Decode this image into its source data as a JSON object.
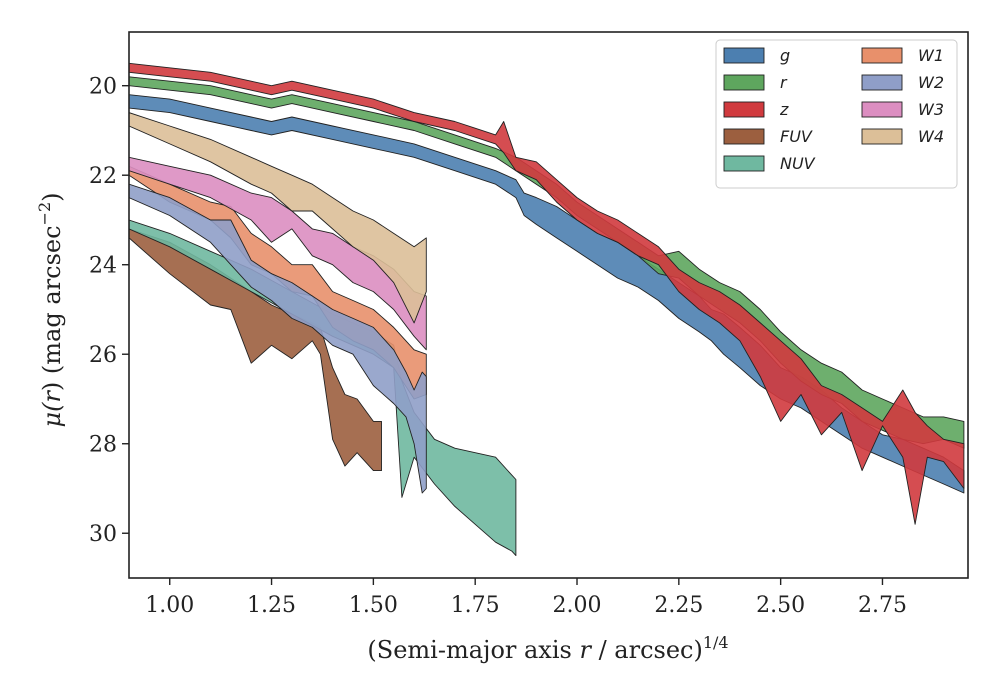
{
  "chart_data": {
    "type": "area",
    "xlabel_main": "(Semi-major axis ",
    "xlabel_var": "r",
    "xlabel_rest": " / arcsec)",
    "xlabel_sup": "1/4",
    "ylabel_main": "μ(",
    "ylabel_var": "r",
    "ylabel_rest": ") (mag arcsec",
    "ylabel_sup": "−2",
    "ylabel_close": ")",
    "xlim": [
      0.9,
      2.96
    ],
    "ylim": [
      31.0,
      18.8
    ],
    "y_inverted": true,
    "x_ticks": [
      1.0,
      1.25,
      1.5,
      1.75,
      2.0,
      2.25,
      2.5,
      2.75
    ],
    "x_tick_labels": [
      "1.00",
      "1.25",
      "1.50",
      "1.75",
      "2.00",
      "2.25",
      "2.50",
      "2.75"
    ],
    "y_ticks": [
      20,
      22,
      24,
      26,
      28,
      30
    ],
    "y_tick_labels": [
      "20",
      "22",
      "24",
      "26",
      "28",
      "30"
    ],
    "grid": false,
    "legend_position": "top-right",
    "legend_columns": 2,
    "series": [
      {
        "name": "g",
        "color": "#4c7fb0",
        "x": [
          0.9,
          1.0,
          1.1,
          1.2,
          1.25,
          1.3,
          1.4,
          1.5,
          1.6,
          1.7,
          1.8,
          1.85,
          1.87,
          1.9,
          1.95,
          2.0,
          2.05,
          2.1,
          2.15,
          2.2,
          2.25,
          2.3,
          2.33,
          2.36,
          2.4,
          2.45,
          2.5,
          2.55,
          2.6,
          2.65,
          2.7,
          2.75,
          2.8,
          2.85,
          2.9,
          2.95
        ],
        "y_lower": [
          20.2,
          20.3,
          20.5,
          20.7,
          20.8,
          20.7,
          20.9,
          21.1,
          21.3,
          21.6,
          21.9,
          22.1,
          22.4,
          22.5,
          22.7,
          23.0,
          23.3,
          23.5,
          23.8,
          24.1,
          24.4,
          24.7,
          25.0,
          25.1,
          25.4,
          25.8,
          26.3,
          26.5,
          26.8,
          27.2,
          27.5,
          27.8,
          27.9,
          28.1,
          28.3,
          28.6
        ],
        "y_upper": [
          20.5,
          20.6,
          20.8,
          21.0,
          21.1,
          21.0,
          21.2,
          21.4,
          21.6,
          21.9,
          22.2,
          22.5,
          22.9,
          23.1,
          23.4,
          23.7,
          24.0,
          24.3,
          24.5,
          24.8,
          25.2,
          25.5,
          25.7,
          26.0,
          26.3,
          26.7,
          27.0,
          27.2,
          27.5,
          27.8,
          28.1,
          28.3,
          28.5,
          28.7,
          28.9,
          29.1
        ]
      },
      {
        "name": "r",
        "color": "#5ea65e",
        "x": [
          0.9,
          1.0,
          1.1,
          1.2,
          1.25,
          1.3,
          1.4,
          1.5,
          1.6,
          1.7,
          1.8,
          1.85,
          1.9,
          1.95,
          2.0,
          2.05,
          2.1,
          2.15,
          2.2,
          2.25,
          2.3,
          2.35,
          2.4,
          2.45,
          2.5,
          2.55,
          2.6,
          2.65,
          2.7,
          2.75,
          2.8,
          2.85,
          2.9,
          2.95
        ],
        "y_lower": [
          19.8,
          19.9,
          20.0,
          20.2,
          20.3,
          20.2,
          20.4,
          20.6,
          20.8,
          21.1,
          21.4,
          21.6,
          21.9,
          22.2,
          22.6,
          22.9,
          23.2,
          23.5,
          23.8,
          23.7,
          24.1,
          24.4,
          24.6,
          25.0,
          25.5,
          25.9,
          26.2,
          26.4,
          26.8,
          27.0,
          27.2,
          27.4,
          27.4,
          27.5
        ],
        "y_upper": [
          20.0,
          20.1,
          20.2,
          20.4,
          20.5,
          20.4,
          20.6,
          20.8,
          21.0,
          21.3,
          21.6,
          21.9,
          22.2,
          22.5,
          22.9,
          23.2,
          23.5,
          23.8,
          24.2,
          24.3,
          24.7,
          25.0,
          25.3,
          25.7,
          26.2,
          26.6,
          26.9,
          27.1,
          27.5,
          27.7,
          27.9,
          28.0,
          27.9,
          28.1
        ]
      },
      {
        "name": "z",
        "color": "#d03a3e",
        "x": [
          0.9,
          1.0,
          1.1,
          1.2,
          1.25,
          1.3,
          1.4,
          1.5,
          1.6,
          1.7,
          1.8,
          1.82,
          1.85,
          1.9,
          1.95,
          2.0,
          2.05,
          2.1,
          2.15,
          2.2,
          2.25,
          2.3,
          2.35,
          2.4,
          2.45,
          2.5,
          2.55,
          2.6,
          2.65,
          2.7,
          2.75,
          2.8,
          2.83,
          2.86,
          2.9,
          2.95
        ],
        "y_lower": [
          19.5,
          19.6,
          19.7,
          19.9,
          20.0,
          19.9,
          20.1,
          20.3,
          20.6,
          20.8,
          21.1,
          20.8,
          21.6,
          21.7,
          22.1,
          22.5,
          22.8,
          23.0,
          23.3,
          23.6,
          24.1,
          24.4,
          24.6,
          24.9,
          25.3,
          25.7,
          26.1,
          26.7,
          26.9,
          27.2,
          27.5,
          26.8,
          27.3,
          27.6,
          27.9,
          28.0
        ],
        "y_upper": [
          19.7,
          19.8,
          19.9,
          20.1,
          20.2,
          20.1,
          20.3,
          20.5,
          20.8,
          21.0,
          21.3,
          21.5,
          21.9,
          22.1,
          22.6,
          23.0,
          23.3,
          23.5,
          23.8,
          24.0,
          24.6,
          25.0,
          25.3,
          25.7,
          26.5,
          27.5,
          26.9,
          27.8,
          27.3,
          28.6,
          27.6,
          28.3,
          29.8,
          28.3,
          28.4,
          29.0
        ]
      },
      {
        "name": "FUV",
        "color": "#9c5f3f",
        "x": [
          0.9,
          1.0,
          1.1,
          1.15,
          1.2,
          1.25,
          1.3,
          1.35,
          1.37,
          1.4,
          1.43,
          1.46,
          1.5,
          1.52
        ],
        "y_lower": [
          23.2,
          23.5,
          24.0,
          24.3,
          24.6,
          24.9,
          25.1,
          25.3,
          25.4,
          26.3,
          26.9,
          27.0,
          27.5,
          27.5
        ],
        "y_upper": [
          23.4,
          24.2,
          24.9,
          25.0,
          26.2,
          25.8,
          26.1,
          25.7,
          26.0,
          27.9,
          28.5,
          28.2,
          28.6,
          28.6
        ]
      },
      {
        "name": "NUV",
        "color": "#6fb8a0",
        "x": [
          0.9,
          1.0,
          1.1,
          1.2,
          1.3,
          1.4,
          1.5,
          1.55,
          1.57,
          1.6,
          1.65,
          1.7,
          1.75,
          1.8,
          1.84,
          1.85
        ],
        "y_lower": [
          23.0,
          23.3,
          23.7,
          24.1,
          24.6,
          25.1,
          25.5,
          25.8,
          26.6,
          27.3,
          27.9,
          28.1,
          28.2,
          28.3,
          28.7,
          28.8
        ],
        "y_upper": [
          23.2,
          23.6,
          24.1,
          24.6,
          25.1,
          25.6,
          26.0,
          26.3,
          29.2,
          28.3,
          28.9,
          29.4,
          29.8,
          30.2,
          30.4,
          30.5
        ]
      },
      {
        "name": "W1",
        "color": "#e8906b",
        "x": [
          0.9,
          1.0,
          1.1,
          1.15,
          1.2,
          1.25,
          1.3,
          1.35,
          1.4,
          1.45,
          1.5,
          1.55,
          1.6,
          1.63
        ],
        "y_lower": [
          21.8,
          22.2,
          22.6,
          22.7,
          23.3,
          23.6,
          24.0,
          24.0,
          24.6,
          24.8,
          25.0,
          25.4,
          25.9,
          26.0
        ],
        "y_upper": [
          22.0,
          22.6,
          23.0,
          23.4,
          24.0,
          24.2,
          24.6,
          24.7,
          25.4,
          25.7,
          25.9,
          26.3,
          27.0,
          26.9
        ]
      },
      {
        "name": "W2",
        "color": "#8f9ec8",
        "x": [
          0.9,
          1.0,
          1.1,
          1.15,
          1.2,
          1.25,
          1.3,
          1.35,
          1.4,
          1.45,
          1.5,
          1.55,
          1.58,
          1.6,
          1.62,
          1.63
        ],
        "y_lower": [
          22.2,
          22.5,
          23.0,
          23.0,
          23.9,
          24.2,
          24.4,
          24.7,
          25.0,
          25.2,
          25.4,
          25.9,
          26.4,
          26.8,
          26.4,
          26.5
        ],
        "y_upper": [
          22.5,
          22.9,
          23.5,
          24.0,
          24.5,
          24.8,
          25.2,
          25.4,
          25.8,
          26.0,
          26.7,
          27.1,
          27.4,
          28.0,
          29.1,
          29.0
        ]
      },
      {
        "name": "W3",
        "color": "#dc8ec1",
        "x": [
          0.9,
          1.0,
          1.1,
          1.2,
          1.25,
          1.3,
          1.35,
          1.4,
          1.45,
          1.5,
          1.55,
          1.6,
          1.63
        ],
        "y_lower": [
          21.6,
          21.8,
          22.0,
          22.4,
          22.5,
          22.8,
          23.2,
          23.3,
          23.6,
          23.8,
          24.1,
          24.6,
          24.7
        ],
        "y_upper": [
          21.9,
          22.2,
          22.5,
          23.0,
          23.5,
          23.2,
          23.8,
          24.0,
          24.4,
          24.6,
          25.0,
          25.6,
          25.9
        ]
      },
      {
        "name": "W4",
        "color": "#dcbf98",
        "x": [
          0.9,
          1.0,
          1.1,
          1.2,
          1.25,
          1.3,
          1.35,
          1.4,
          1.45,
          1.5,
          1.55,
          1.6,
          1.63
        ],
        "y_lower": [
          20.6,
          20.9,
          21.2,
          21.6,
          21.8,
          22.0,
          22.2,
          22.5,
          22.8,
          23.0,
          23.3,
          23.6,
          23.4
        ],
        "y_upper": [
          20.9,
          21.3,
          21.7,
          22.2,
          22.4,
          22.8,
          22.8,
          23.2,
          23.6,
          23.9,
          24.4,
          25.3,
          24.6
        ]
      }
    ]
  }
}
